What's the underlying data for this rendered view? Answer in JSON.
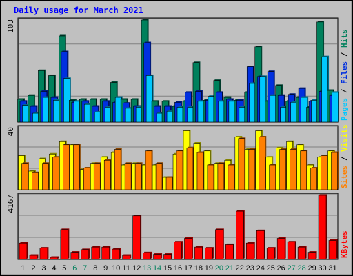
{
  "chart_data": {
    "type": "bar",
    "title": "Daily usage for March 2021",
    "days": [
      "1",
      "2",
      "3",
      "4",
      "5",
      "6",
      "7",
      "8",
      "9",
      "10",
      "11",
      "12",
      "13",
      "14",
      "15",
      "16",
      "17",
      "18",
      "19",
      "20",
      "21",
      "22",
      "23",
      "24",
      "25",
      "26",
      "27",
      "28",
      "29",
      "30",
      "31"
    ],
    "weekend_days": [
      "6",
      "7",
      "13",
      "14",
      "20",
      "21",
      "27",
      "28"
    ],
    "panels": [
      {
        "id": "hits",
        "ymax_label": "103",
        "ymax": 103,
        "series": [
          {
            "name": "Hits",
            "color": "#00805c",
            "values": [
              23,
              27,
              52,
              47,
              87,
              22,
              23,
              23,
              23,
              40,
              23,
              23,
              103,
              21,
              21,
              16,
              21,
              60,
              22,
              42,
              25,
              22,
              30,
              76,
              21,
              37,
              21,
              25,
              15,
              101,
              32
            ]
          },
          {
            "name": "Files",
            "color": "#0030e0",
            "values": [
              21,
              16,
              31,
              25,
              71,
              20,
              21,
              16,
              21,
              20,
              19,
              16,
              80,
              16,
              16,
              20,
              30,
              31,
              22,
              30,
              23,
              22,
              56,
              46,
              51,
              27,
              28,
              34,
              21,
              31,
              27
            ]
          },
          {
            "name": "Pages",
            "color": "#00c8ff",
            "values": [
              17,
              9,
              25,
              22,
              44,
              21,
              18,
              10,
              15,
              25,
              14,
              15,
              47,
              9,
              11,
              15,
              15,
              21,
              26,
              21,
              21,
              15,
              39,
              46,
              27,
              15,
              20,
              25,
              22,
              66,
              30
            ]
          }
        ]
      },
      {
        "id": "visits",
        "ymax_label": "40",
        "ymax": 40,
        "series": [
          {
            "name": "Visits",
            "color": "#ffff00",
            "values": [
              22,
              12,
              20,
              23,
              31,
              29,
              13,
              17,
              21,
              24,
              16,
              17,
              16,
              16,
              8,
              23,
              38,
              30,
              25,
              17,
              19,
              34,
              26,
              38,
              21,
              27,
              31,
              29,
              16,
              21,
              25
            ]
          },
          {
            "name": "Sites",
            "color": "#ff8000",
            "values": [
              17,
              11,
              17,
              21,
              29,
              29,
              14,
              17,
              19,
              26,
              17,
              17,
              25,
              17,
              8,
              25,
              27,
              24,
              16,
              17,
              16,
              33,
              26,
              34,
              16,
              26,
              26,
              25,
              14,
              22,
              24
            ]
          }
        ]
      },
      {
        "id": "kbytes",
        "ymax_label": "4167",
        "ymax": 4167,
        "series": [
          {
            "name": "KBytes",
            "color": "#ff0000",
            "values": [
              1067,
              267,
              733,
              133,
              1933,
              467,
              633,
              800,
              800,
              667,
              267,
              2833,
              433,
              333,
              333,
              1133,
              1367,
              800,
              733,
              1933,
              967,
              3133,
              1067,
              1867,
              733,
              1367,
              1133,
              800,
              467,
              4167,
              1233
            ]
          }
        ]
      }
    ],
    "colors": {
      "background": "#c0c0c0",
      "title": "#0000ff",
      "weekday": "#000000",
      "weekend": "#00805c"
    }
  }
}
